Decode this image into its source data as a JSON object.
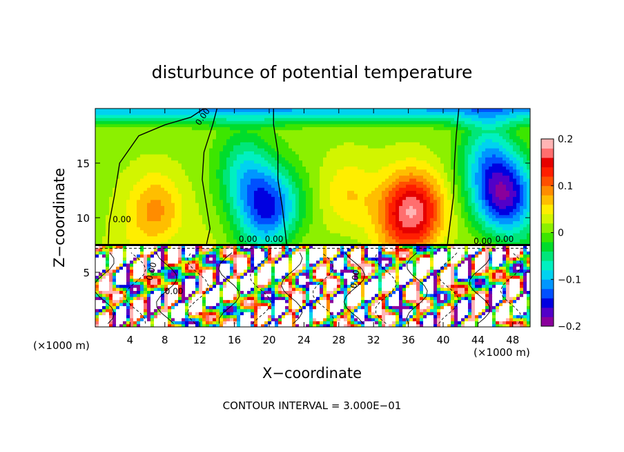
{
  "chart_data": {
    "type": "heatmap",
    "title": "disturbunce of potential temperature",
    "xlabel": "X−coordinate",
    "ylabel": "Z−coordinate",
    "x_unit_left": "(×1000 m)",
    "x_unit_right": "(×1000 m)",
    "xlim": [
      0,
      50
    ],
    "ylim": [
      0,
      20
    ],
    "x_ticks": [
      4,
      8,
      12,
      16,
      20,
      24,
      28,
      32,
      36,
      40,
      44,
      48
    ],
    "x_tick_labels": [
      "4",
      "8",
      "12",
      "16",
      "20",
      "24",
      "28",
      "32",
      "36",
      "40",
      "44",
      "48"
    ],
    "y_ticks": [
      5,
      10,
      15
    ],
    "y_tick_labels": [
      "5",
      "10",
      "15"
    ],
    "colorbar": {
      "range": [
        -0.2,
        0.2
      ],
      "tick_values": [
        0.2,
        0.1,
        0,
        -0.1,
        -0.2
      ],
      "tick_labels": [
        "0.2",
        "0.1",
        "0",
        "−0.1",
        "−0.2"
      ],
      "colors": [
        "#8a009c",
        "#5200c8",
        "#0000e0",
        "#0050ff",
        "#0096ff",
        "#00d2f0",
        "#00f0c0",
        "#00e67a",
        "#00dc2c",
        "#3ce600",
        "#8cf000",
        "#d2f500",
        "#ffee00",
        "#ffbe00",
        "#ff8c00",
        "#ff5000",
        "#ff1e00",
        "#e60000",
        "#ff6e6e",
        "#ffb4b4"
      ]
    },
    "contour_labels": [
      "0.00",
      "0.00",
      "0.00",
      "0.00",
      "0.00",
      "0.00",
      "0.00",
      "0.00",
      "0.00"
    ],
    "contour_interval_text": "CONTOUR INTERVAL = 3.000E−01",
    "features": [
      {
        "kind": "min",
        "x": 20,
        "z": 11,
        "value": -0.15
      },
      {
        "kind": "min",
        "x": 47,
        "z": 12,
        "value": -0.18
      },
      {
        "kind": "max",
        "x": 36.5,
        "z": 10.5,
        "value": 0.17
      },
      {
        "kind": "max",
        "x": 7,
        "z": 10.5,
        "value": 0.08
      },
      {
        "kind": "min",
        "x": 17,
        "z": 14.5,
        "value": -0.07
      },
      {
        "kind": "min",
        "x": 45,
        "z": 16,
        "value": -0.08
      },
      {
        "kind": "max",
        "x": 29,
        "z": 12,
        "value": 0.05
      }
    ]
  }
}
